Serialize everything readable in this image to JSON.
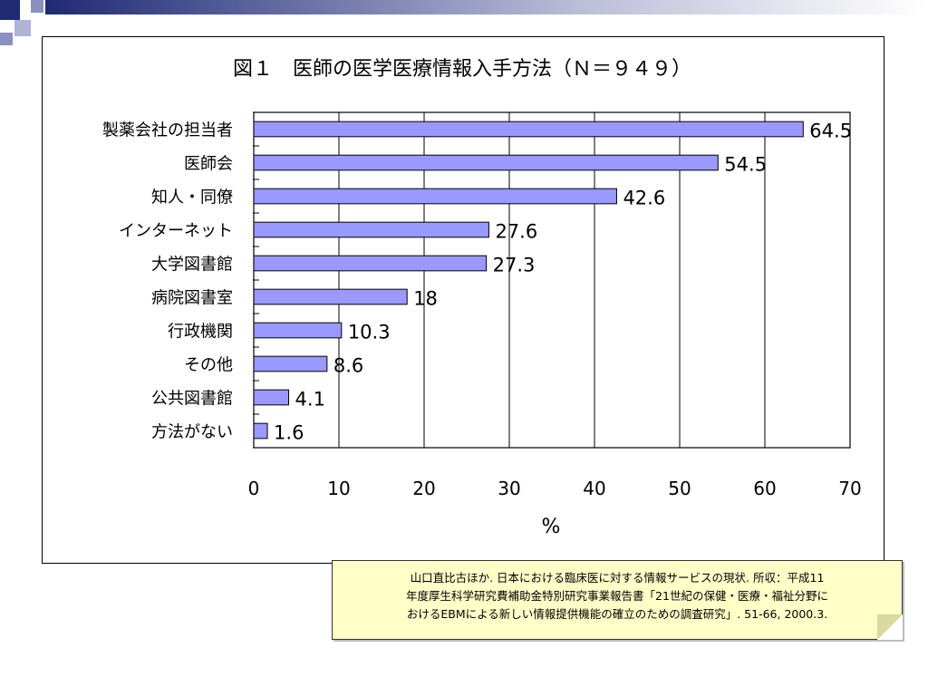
{
  "slide": {
    "colors": {
      "accent_dark": "#1e2a72",
      "accent_mid": "#6b73a8",
      "bar_fill": "#9999ff",
      "note_fill": "#ffffc8"
    }
  },
  "chart_data": {
    "type": "bar",
    "orientation": "horizontal",
    "title": "図１　医師の医学医療情報入手方法（Ｎ＝９４９）",
    "xlabel": "%",
    "ylabel": "",
    "xlim": [
      0,
      70
    ],
    "xticks": [
      "0",
      "10",
      "20",
      "30",
      "40",
      "50",
      "60",
      "70"
    ],
    "grid": "vertical",
    "categories": [
      "製薬会社の担当者",
      "医師会",
      "知人・同僚",
      "インターネット",
      "大学図書館",
      "病院図書室",
      "行政機関",
      "その他",
      "公共図書館",
      "方法がない"
    ],
    "values": [
      64.5,
      54.5,
      42.6,
      27.6,
      27.3,
      18,
      10.3,
      8.6,
      4.1,
      1.6
    ],
    "value_labels": [
      "64.5",
      "54.5",
      "42.6",
      "27.6",
      "27.3",
      "18",
      "10.3",
      "8.6",
      "4.1",
      "1.6"
    ]
  },
  "note": {
    "lines": [
      "山口直比古ほか. 日本における臨床医に対する情報サービスの現状. 所収：平成11",
      "年度厚生科学研究費補助金特別研究事業報告書「21世紀の保健・医療・福祉分野に",
      "おけるEBMによる新しい情報提供機能の確立のための調査研究」. 51-66, 2000.3."
    ]
  }
}
